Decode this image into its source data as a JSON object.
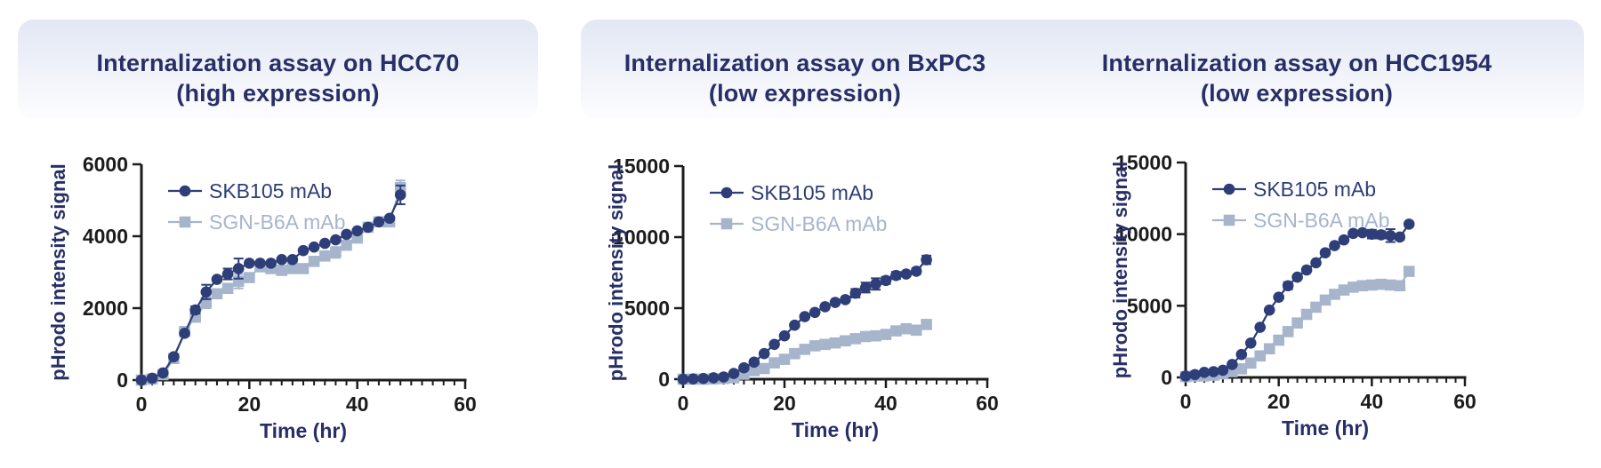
{
  "colors": {
    "title_navy": "#282f67",
    "axis_black": "#1c1c1c",
    "series1_navy": "#2d3e78",
    "series2_lightblue": "#a6b5cc",
    "header_gradient_top": "#e2e7f4",
    "header_gradient_bottom": "#fdfdff"
  },
  "chart_data": [
    {
      "type": "line",
      "title_line1": "Internalization assay on HCC70",
      "title_line2": "(high expression)",
      "xlabel": "Time (hr)",
      "ylabel": "pHrodo intensity signal",
      "xlim": [
        0,
        60
      ],
      "ylim": [
        0,
        6000
      ],
      "xticks": [
        0,
        20,
        40,
        60
      ],
      "x_minor_step": 2,
      "yticks": [
        0,
        2000,
        4000,
        6000
      ],
      "legend_position": "upper-left",
      "grid": false,
      "x": [
        0,
        2,
        4,
        6,
        8,
        10,
        12,
        14,
        16,
        18,
        20,
        22,
        24,
        26,
        28,
        30,
        32,
        34,
        36,
        38,
        40,
        42,
        44,
        46,
        48
      ],
      "series": [
        {
          "name": "SKB105 mAb",
          "marker": "circle",
          "color": "#2d3e78",
          "values": [
            0,
            50,
            200,
            650,
            1300,
            1950,
            2450,
            2800,
            2950,
            3100,
            3250,
            3250,
            3250,
            3350,
            3350,
            3600,
            3700,
            3800,
            3900,
            4050,
            4150,
            4250,
            4400,
            4500,
            5150
          ],
          "errors": [
            0,
            0,
            0,
            0,
            0,
            100,
            200,
            0,
            150,
            280,
            0,
            0,
            0,
            0,
            0,
            0,
            0,
            0,
            0,
            0,
            0,
            0,
            0,
            0,
            260
          ]
        },
        {
          "name": "SGN-B6A mAb",
          "marker": "square",
          "color": "#a6b5cc",
          "values": [
            0,
            30,
            150,
            600,
            1350,
            1750,
            2150,
            2400,
            2550,
            2750,
            2850,
            3150,
            3100,
            3050,
            3100,
            3100,
            3300,
            3450,
            3550,
            3750,
            3950,
            4250,
            4400,
            4400,
            5350
          ],
          "errors": [
            0,
            0,
            0,
            0,
            0,
            0,
            150,
            0,
            0,
            200,
            0,
            0,
            0,
            0,
            0,
            0,
            0,
            0,
            150,
            0,
            0,
            0,
            120,
            0,
            200
          ]
        }
      ]
    },
    {
      "type": "line",
      "title_line1": "Internalization assay on BxPC3",
      "title_line2": "(low expression)",
      "xlabel": "Time (hr)",
      "ylabel": "pHrodo intensity signal",
      "xlim": [
        0,
        60
      ],
      "ylim": [
        0,
        15000
      ],
      "xticks": [
        0,
        20,
        40,
        60
      ],
      "x_minor_step": 2,
      "yticks": [
        0,
        5000,
        10000,
        15000
      ],
      "legend_position": "upper-left",
      "grid": false,
      "x": [
        0,
        2,
        4,
        6,
        8,
        10,
        12,
        14,
        16,
        18,
        20,
        22,
        24,
        26,
        28,
        30,
        32,
        34,
        36,
        38,
        40,
        42,
        44,
        46,
        48
      ],
      "series": [
        {
          "name": "SKB105 mAb",
          "marker": "circle",
          "color": "#2d3e78",
          "values": [
            0,
            20,
            50,
            100,
            150,
            400,
            800,
            1200,
            1800,
            2450,
            3050,
            3800,
            4400,
            4700,
            5100,
            5400,
            5600,
            6050,
            6450,
            6700,
            6950,
            7300,
            7400,
            7600,
            8400
          ],
          "errors": [
            0,
            0,
            0,
            0,
            0,
            0,
            0,
            150,
            0,
            0,
            0,
            0,
            0,
            0,
            0,
            0,
            0,
            300,
            350,
            400,
            250,
            250,
            150,
            200,
            300
          ]
        },
        {
          "name": "SGN-B6A mAb",
          "marker": "square",
          "color": "#a6b5cc",
          "values": [
            0,
            0,
            0,
            20,
            50,
            100,
            350,
            600,
            750,
            1150,
            1400,
            1800,
            2100,
            2350,
            2450,
            2550,
            2700,
            2850,
            3000,
            3050,
            3150,
            3400,
            3550,
            3450,
            3850
          ],
          "errors": [
            0,
            0,
            0,
            0,
            0,
            0,
            150,
            0,
            0,
            0,
            0,
            0,
            0,
            0,
            0,
            0,
            0,
            0,
            0,
            0,
            0,
            0,
            120,
            0,
            0
          ]
        }
      ]
    },
    {
      "type": "line",
      "title_line1": "Internalization assay on HCC1954",
      "title_line2": "(low expression)",
      "xlabel": "Time (hr)",
      "ylabel": "pHrodo intensity signal",
      "xlim": [
        0,
        60
      ],
      "ylim": [
        0,
        15000
      ],
      "xticks": [
        0,
        20,
        40,
        60
      ],
      "x_minor_step": 2,
      "yticks": [
        0,
        5000,
        10000,
        15000
      ],
      "legend_position": "upper-left",
      "grid": false,
      "x": [
        0,
        2,
        4,
        6,
        8,
        10,
        12,
        14,
        16,
        18,
        20,
        22,
        24,
        26,
        28,
        30,
        32,
        34,
        36,
        38,
        40,
        42,
        44,
        46,
        48
      ],
      "series": [
        {
          "name": "SKB105 mAb",
          "marker": "circle",
          "color": "#2d3e78",
          "values": [
            100,
            200,
            350,
            400,
            500,
            900,
            1600,
            2400,
            3500,
            4700,
            5600,
            6400,
            7000,
            7500,
            8000,
            8700,
            9200,
            9600,
            10050,
            10100,
            10000,
            9950,
            9900,
            9800,
            10700
          ],
          "errors": [
            0,
            0,
            0,
            0,
            0,
            0,
            0,
            0,
            0,
            0,
            0,
            250,
            0,
            0,
            0,
            0,
            0,
            0,
            0,
            0,
            300,
            250,
            450,
            200,
            0
          ]
        },
        {
          "name": "SGN-B6A mAb",
          "marker": "square",
          "color": "#a6b5cc",
          "values": [
            50,
            100,
            100,
            150,
            250,
            400,
            600,
            1000,
            1500,
            2000,
            2600,
            3200,
            3800,
            4400,
            4900,
            5400,
            5800,
            6100,
            6300,
            6400,
            6450,
            6500,
            6450,
            6400,
            7400
          ],
          "errors": [
            0,
            0,
            0,
            0,
            0,
            0,
            0,
            0,
            0,
            0,
            0,
            0,
            250,
            0,
            0,
            0,
            0,
            0,
            250,
            200,
            300,
            250,
            200,
            250,
            0
          ]
        }
      ]
    }
  ]
}
